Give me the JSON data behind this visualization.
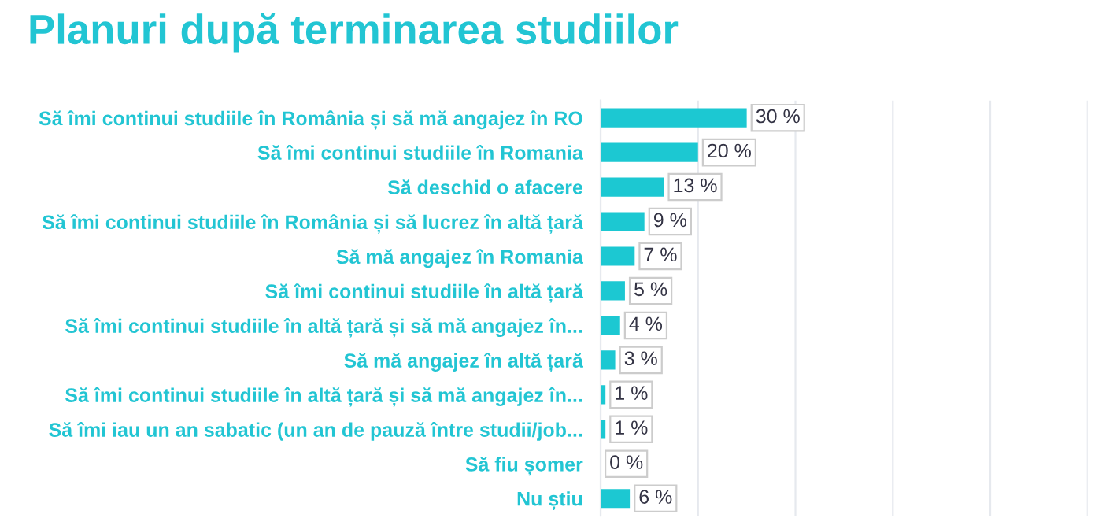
{
  "chart_data": {
    "type": "bar",
    "orientation": "horizontal",
    "title": "Planuri după terminarea studiilor",
    "categories": [
      "Să îmi continui studiile în România și să mă angajez în RO",
      "Să îmi continui studiile în Romania",
      "Să deschid o afacere",
      "Să îmi continui studiile în România și să lucrez în altă țară",
      "Să mă angajez în Romania",
      "Să îmi continui studiile în altă țară",
      "Să îmi continui studiile în altă țară și să mă angajez în...",
      "Să mă angajez în altă țară",
      "Să îmi continui studiile în altă țară și să mă angajez în...",
      "Să îmi iau un an sabatic (un an de pauză între studii/job...",
      "Să fiu șomer",
      "Nu știu"
    ],
    "values": [
      30,
      20,
      13,
      9,
      7,
      5,
      4,
      3,
      1,
      1,
      0,
      6
    ],
    "value_labels": [
      "30 %",
      "20 %",
      "13 %",
      "9 %",
      "7 %",
      "5 %",
      "4 %",
      "3 %",
      "1 %",
      "1 %",
      "0 %",
      "6 %"
    ],
    "color": "#1cc8d2",
    "xlim": [
      0,
      100
    ],
    "xticks": [
      {
        "value": 0,
        "label": null
      },
      {
        "value": 20,
        "label": null
      },
      {
        "value": 40,
        "label": null
      },
      {
        "value": 60,
        "label": null
      },
      {
        "value": 80,
        "label": null
      },
      {
        "value": 100,
        "label": null
      }
    ],
    "tick_labels": "y",
    "grid": "x",
    "legend": false
  }
}
